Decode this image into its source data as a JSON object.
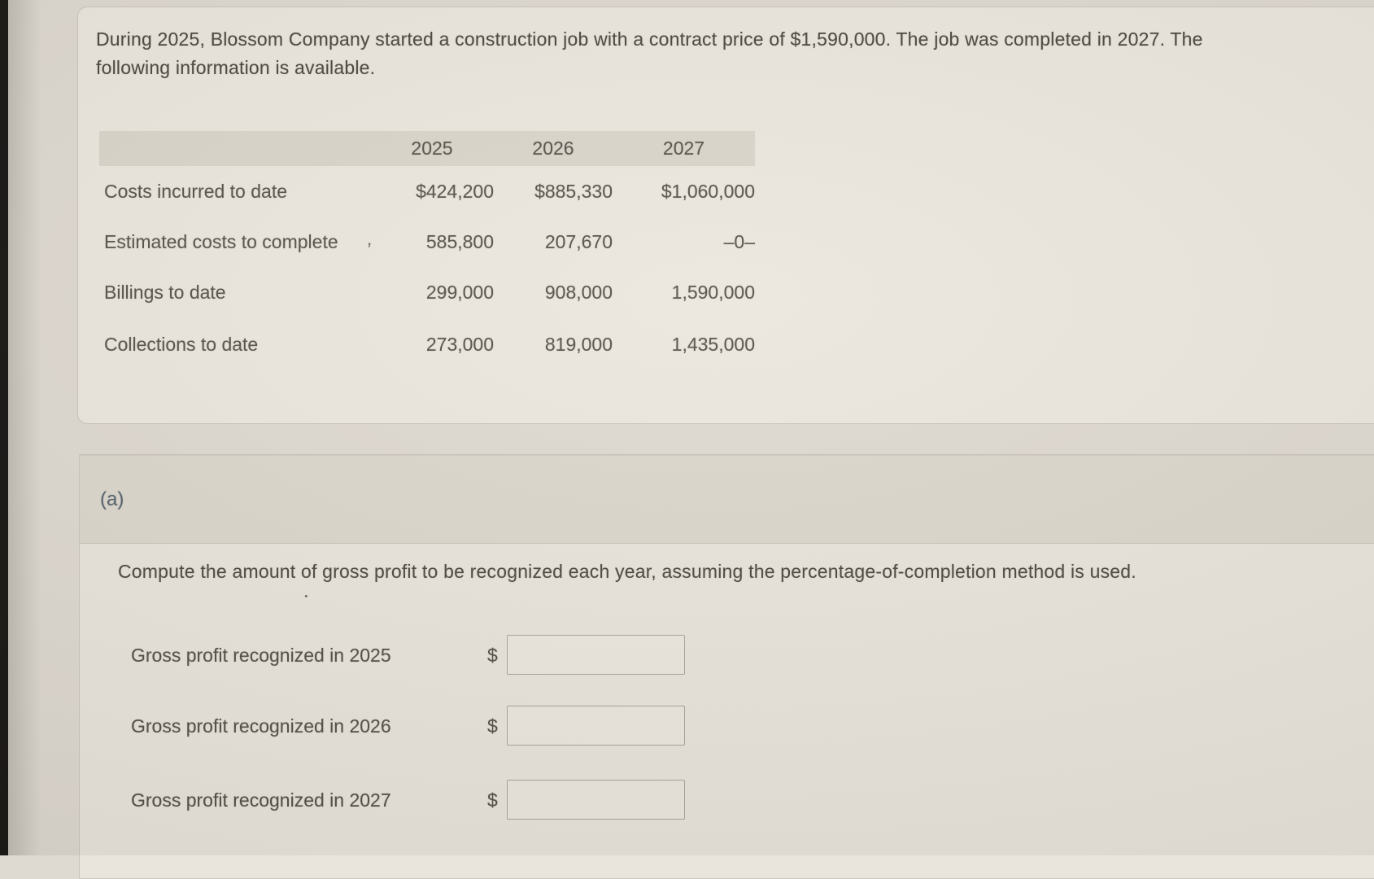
{
  "problem": {
    "text_lines": [
      "During 2025, Blossom Company started a construction job with a contract price of $1,590,000. The job was completed in 2027. The",
      "following information is available."
    ]
  },
  "table": {
    "columns": [
      "2025",
      "2026",
      "2027"
    ],
    "rows": [
      {
        "label": "Costs incurred to date",
        "values": [
          "$424,200",
          "$885,330",
          "$1,060,000"
        ]
      },
      {
        "label": "Estimated costs to complete",
        "values": [
          "585,800",
          "207,670",
          "–0–"
        ]
      },
      {
        "label": "Billings to date",
        "values": [
          "299,000",
          "908,000",
          "1,590,000"
        ]
      },
      {
        "label": "Collections to date",
        "values": [
          "273,000",
          "819,000",
          "1,435,000"
        ]
      }
    ]
  },
  "section": {
    "label": "(a)",
    "instruction": "Compute the amount of gross profit to be recognized each year, assuming the percentage-of-completion method is used."
  },
  "answers": [
    {
      "label": "Gross profit recognized in 2025",
      "currency": "$",
      "value": ""
    },
    {
      "label": "Gross profit recognized in 2026",
      "currency": "$",
      "value": ""
    },
    {
      "label": "Gross profit recognized in 2027",
      "currency": "$",
      "value": ""
    }
  ],
  "artifacts": {
    "tick": ",",
    "dot": "˙"
  },
  "colors": {
    "page_bg": "#ded9d1",
    "card_bg": "#ebe7df",
    "band_bg": "#d9d5cb",
    "text": "#56524b",
    "part_label": "#54606e",
    "input_border": "#a9a59d",
    "edge_strip": "#121110"
  }
}
